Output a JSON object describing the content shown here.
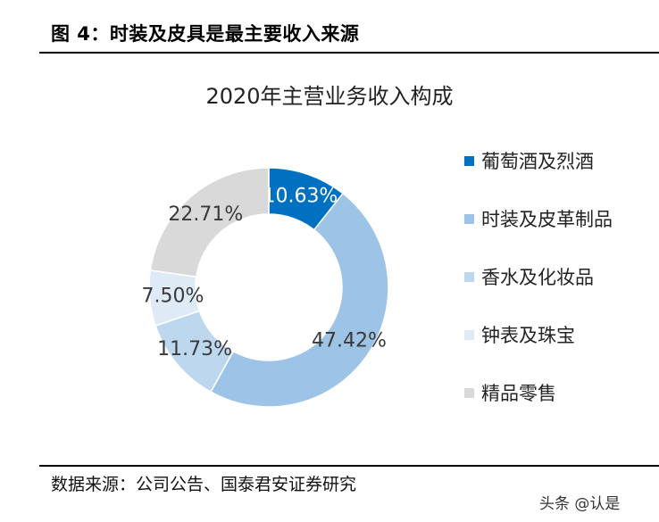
{
  "figure": {
    "title": "图 4：时装及皮具是最主要收入来源",
    "source": "数据来源：公司公告、国泰君安证券研究",
    "watermark": "头条 @认是"
  },
  "chart_data": {
    "type": "pie",
    "variant": "donut",
    "title": "2020年主营业务收入构成",
    "categories": [
      "葡萄酒及烈酒",
      "时装及皮革制品",
      "香水及化妆品",
      "钟表及珠宝",
      "精品零售"
    ],
    "values": [
      10.63,
      47.42,
      11.73,
      7.5,
      22.71
    ],
    "labels": [
      "10.63%",
      "47.42%",
      "11.73%",
      "7.50%",
      "22.71%"
    ],
    "colors": [
      "#0070C0",
      "#9DC3E6",
      "#BDD7EE",
      "#DEEBF7",
      "#D9D9D9"
    ],
    "label_colors": [
      "#ffffff",
      "#3a3a3a",
      "#3a3a3a",
      "#3a3a3a",
      "#3a3a3a"
    ],
    "legend_position": "right"
  }
}
